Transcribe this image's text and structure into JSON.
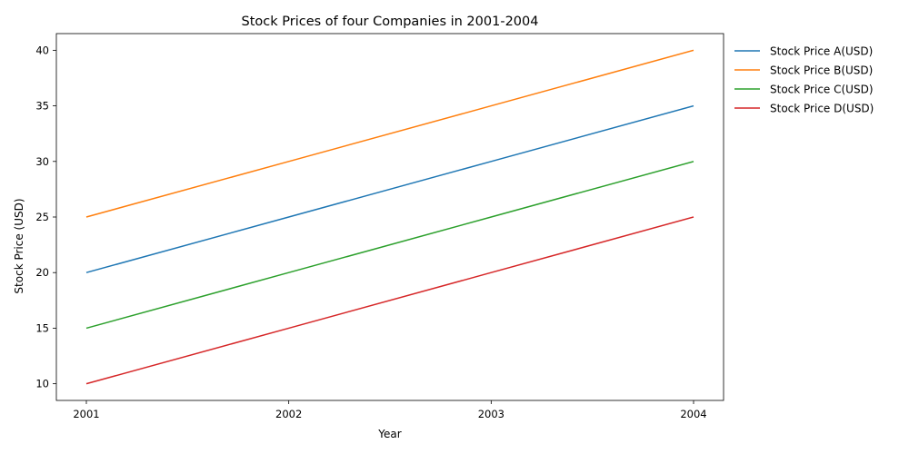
{
  "chart_data": {
    "type": "line",
    "title": "Stock Prices of four Companies in 2001-2004",
    "xlabel": "Year",
    "ylabel": "Stock Price (USD)",
    "x": [
      "2001",
      "2002",
      "2003",
      "2004"
    ],
    "series": [
      {
        "name": "Stock Price A(USD)",
        "values": [
          20,
          25,
          30,
          35
        ],
        "color": "#1f77b4"
      },
      {
        "name": "Stock Price B(USD)",
        "values": [
          25,
          30,
          35,
          40
        ],
        "color": "#ff7f0e"
      },
      {
        "name": "Stock Price C(USD)",
        "values": [
          15,
          20,
          25,
          30
        ],
        "color": "#2ca02c"
      },
      {
        "name": "Stock Price D(USD)",
        "values": [
          10,
          15,
          20,
          25
        ],
        "color": "#d62728"
      }
    ],
    "yticks": [
      10,
      15,
      20,
      25,
      30,
      35,
      40
    ],
    "ylim": [
      8.5,
      41.5
    ],
    "grid": false,
    "legend_position": "outside-right-top"
  }
}
